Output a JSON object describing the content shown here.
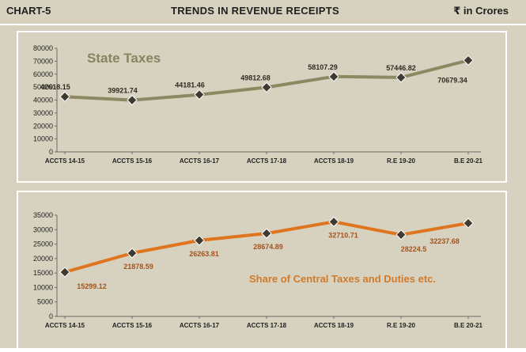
{
  "header": {
    "chart_label": "CHART-5",
    "title": "TRENDS IN REVENUE RECEIPTS",
    "unit": "₹ in Crores"
  },
  "colors": {
    "background": "#d6d2bf",
    "state_line": "#8b8862",
    "central_line": "#e0751f",
    "marker": "#3d3a30",
    "state_title": "#878460",
    "central_title": "#d07a2b",
    "central_label": "#a6521b"
  },
  "chart_data": [
    {
      "type": "line",
      "title": "State Taxes",
      "categories": [
        "ACCTS 14-15",
        "ACCTS 15-16",
        "ACCTS 16-17",
        "ACCTS 17-18",
        "ACCTS 18-19",
        "R.E 19-20",
        "B.E 20-21"
      ],
      "values": [
        42618.15,
        39921.74,
        44181.46,
        49812.68,
        58107.29,
        57446.82,
        70679.34
      ],
      "value_labels": [
        "42618.15",
        "39921.74",
        "44181.46",
        "49812.68",
        "58107.29",
        "57446.82",
        "70679.34"
      ],
      "yticks": [
        "0",
        "10000",
        "20000",
        "30000",
        "40000",
        "50000",
        "60000",
        "70000",
        "80000"
      ],
      "ylim": [
        0,
        80000
      ],
      "grid": false
    },
    {
      "type": "line",
      "title": "Share of Central Taxes and Duties etc.",
      "categories": [
        "ACCTS 14-15",
        "ACCTS 15-16",
        "ACCTS 16-17",
        "ACCTS 17-18",
        "ACCTS 18-19",
        "R.E 19-20",
        "B.E 20-21"
      ],
      "values": [
        15299.12,
        21878.59,
        26263.81,
        28674.89,
        32710.71,
        28224.5,
        32237.68
      ],
      "value_labels": [
        "15299.12",
        "21878.59",
        "26263.81",
        "28674.89",
        "32710.71",
        "28224.5",
        "32237.68"
      ],
      "yticks": [
        "0",
        "5000",
        "10000",
        "15000",
        "20000",
        "25000",
        "30000",
        "35000"
      ],
      "ylim": [
        0,
        35000
      ],
      "grid": false
    }
  ]
}
